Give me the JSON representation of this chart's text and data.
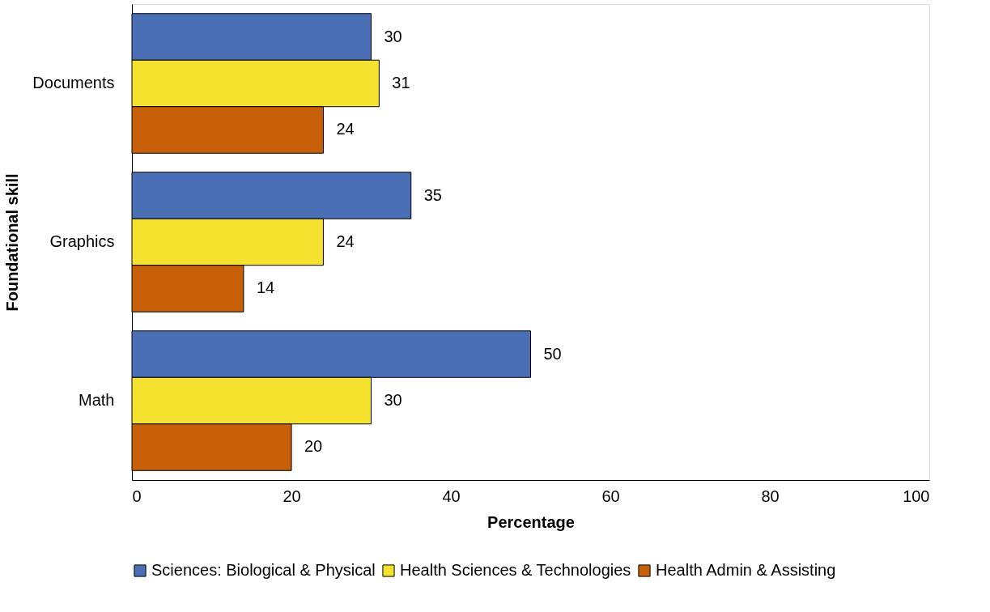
{
  "chart_data": {
    "type": "bar",
    "orientation": "horizontal",
    "xlabel": "Percentage",
    "ylabel": "Foundational skill",
    "categories": [
      "Documents",
      "Graphics",
      "Math"
    ],
    "series": [
      {
        "name": "Sciences: Biological & Physical",
        "color": "#4a6fb5",
        "values": [
          30,
          35,
          50
        ]
      },
      {
        "name": "Health Sciences & Technologies",
        "color": "#f5e22e",
        "values": [
          31,
          24,
          30
        ]
      },
      {
        "name": "Health Admin & Assisting",
        "color": "#c8600a",
        "values": [
          24,
          14,
          20
        ]
      }
    ],
    "xlim": [
      0,
      100
    ],
    "xticks": [
      0,
      20,
      40,
      60,
      80,
      100
    ],
    "grid": false,
    "legend": "bottom",
    "data_labels": true
  }
}
